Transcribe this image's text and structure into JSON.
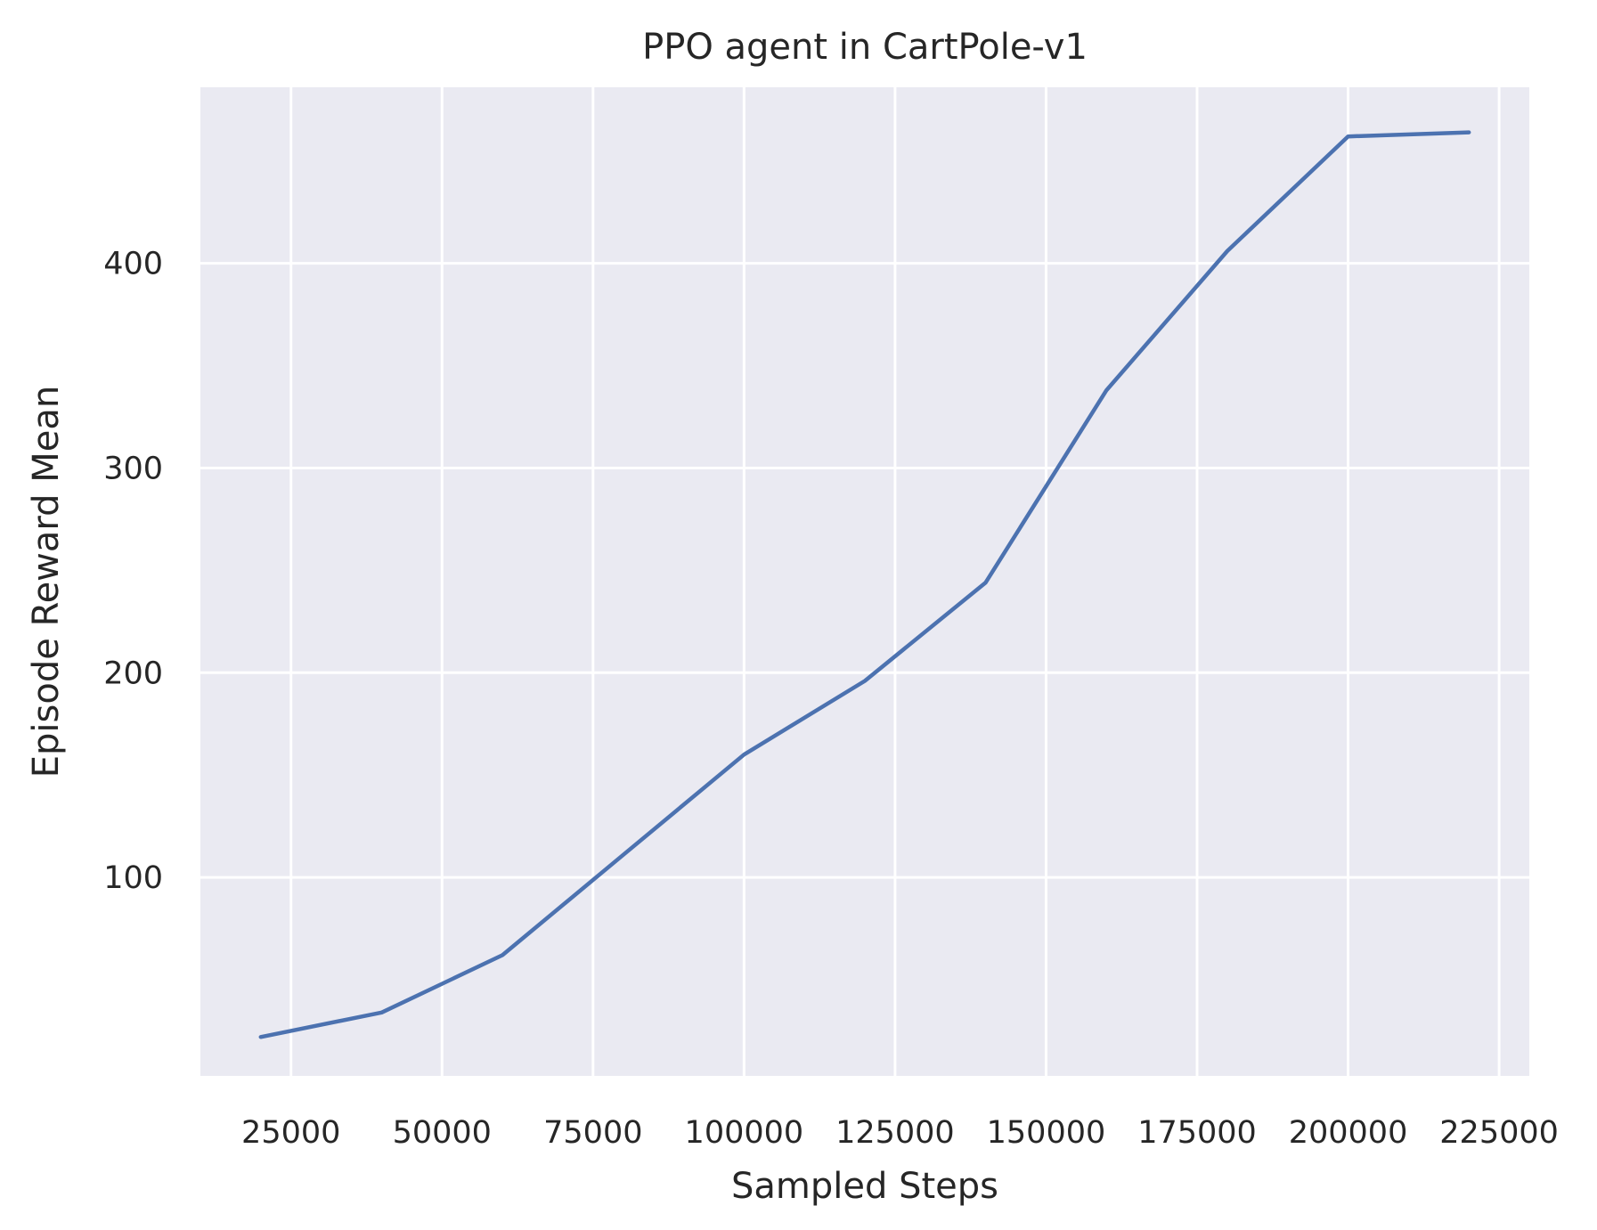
{
  "chart_data": {
    "type": "line",
    "title": "PPO agent in CartPole-v1",
    "xlabel": "Sampled Steps",
    "ylabel": "Episode Reward Mean",
    "xlim": [
      10000,
      230000
    ],
    "ylim": [
      3,
      486
    ],
    "xticks": [
      25000,
      50000,
      75000,
      100000,
      125000,
      150000,
      175000,
      200000,
      225000
    ],
    "yticks": [
      100,
      200,
      300,
      400
    ],
    "grid": true,
    "legend": "none",
    "series": [
      {
        "name": "Episode Reward Mean",
        "color": "#4c72b0",
        "x": [
          20000,
          40000,
          60000,
          80000,
          100000,
          120000,
          140000,
          160000,
          180000,
          200000,
          220000
        ],
        "y": [
          22,
          34,
          62,
          111,
          160,
          196,
          244,
          338,
          406,
          462,
          464
        ]
      }
    ]
  },
  "colors": {
    "plot_background": "#eaeaf2",
    "grid": "#ffffff",
    "text": "#262626",
    "line": "#4c72b0"
  }
}
